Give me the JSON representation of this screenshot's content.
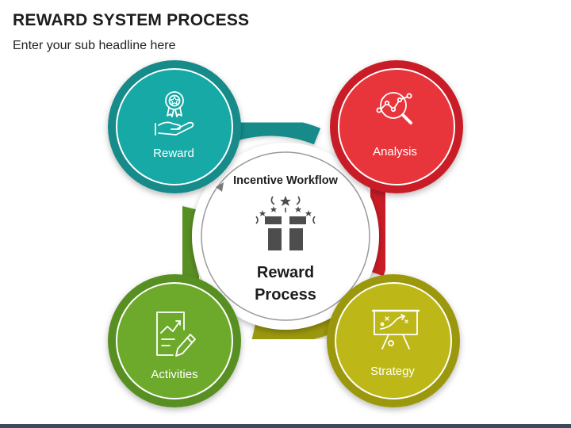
{
  "header": {
    "title": "REWARD SYSTEM PROCESS",
    "subtitle": "Enter your sub headline here"
  },
  "center": {
    "top_label": "Incentive Workflow",
    "line1": "Reward",
    "line2": "Process",
    "icon": "gift-box-icon"
  },
  "nodes": [
    {
      "id": "reward",
      "label": "Reward",
      "icon": "award-hand-icon",
      "color": "#17A9A6",
      "ring": "#138B89"
    },
    {
      "id": "analysis",
      "label": "Analysis",
      "icon": "magnifier-chart-icon",
      "color": "#E8353C",
      "ring": "#C91F25"
    },
    {
      "id": "activities",
      "label": "Activities",
      "icon": "chart-pencil-icon",
      "color": "#6DAA2C",
      "ring": "#588F22"
    },
    {
      "id": "strategy",
      "label": "Strategy",
      "icon": "strategy-board-icon",
      "color": "#BDB817",
      "ring": "#9C980F"
    }
  ],
  "colors": {
    "teal": "#17A9A6",
    "red": "#E8353C",
    "green": "#6DAA2C",
    "olive": "#BDB817",
    "footer": "#3C4A5C"
  }
}
